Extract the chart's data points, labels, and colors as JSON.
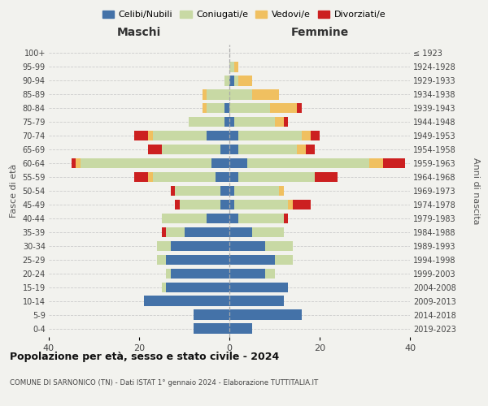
{
  "age_groups": [
    "0-4",
    "5-9",
    "10-14",
    "15-19",
    "20-24",
    "25-29",
    "30-34",
    "35-39",
    "40-44",
    "45-49",
    "50-54",
    "55-59",
    "60-64",
    "65-69",
    "70-74",
    "75-79",
    "80-84",
    "85-89",
    "90-94",
    "95-99",
    "100+"
  ],
  "birth_years": [
    "2019-2023",
    "2014-2018",
    "2009-2013",
    "2004-2008",
    "1999-2003",
    "1994-1998",
    "1989-1993",
    "1984-1988",
    "1979-1983",
    "1974-1978",
    "1969-1973",
    "1964-1968",
    "1959-1963",
    "1954-1958",
    "1949-1953",
    "1944-1948",
    "1939-1943",
    "1934-1938",
    "1929-1933",
    "1924-1928",
    "≤ 1923"
  ],
  "colors": {
    "celibe": "#4472a8",
    "coniugato": "#c8d9a4",
    "vedovo": "#f0c060",
    "divorziato": "#cc2020"
  },
  "maschi": {
    "celibe": [
      8,
      8,
      19,
      14,
      13,
      14,
      13,
      10,
      5,
      2,
      2,
      3,
      4,
      2,
      5,
      1,
      1,
      0,
      0,
      0,
      0
    ],
    "coniugato": [
      0,
      0,
      0,
      1,
      1,
      2,
      3,
      4,
      10,
      9,
      10,
      14,
      29,
      13,
      12,
      8,
      4,
      5,
      1,
      0,
      0
    ],
    "vedovo": [
      0,
      0,
      0,
      0,
      0,
      0,
      0,
      0,
      0,
      0,
      0,
      1,
      1,
      0,
      1,
      0,
      1,
      1,
      0,
      0,
      0
    ],
    "divorziato": [
      0,
      0,
      0,
      0,
      0,
      0,
      0,
      1,
      0,
      1,
      1,
      3,
      1,
      3,
      3,
      0,
      0,
      0,
      0,
      0,
      0
    ]
  },
  "femmine": {
    "nubile": [
      5,
      16,
      12,
      13,
      8,
      10,
      8,
      5,
      2,
      1,
      1,
      2,
      4,
      2,
      2,
      1,
      0,
      0,
      1,
      0,
      0
    ],
    "coniugata": [
      0,
      0,
      0,
      0,
      2,
      4,
      6,
      7,
      10,
      12,
      10,
      17,
      27,
      13,
      14,
      9,
      9,
      5,
      1,
      1,
      0
    ],
    "vedova": [
      0,
      0,
      0,
      0,
      0,
      0,
      0,
      0,
      0,
      1,
      1,
      0,
      3,
      2,
      2,
      2,
      6,
      6,
      3,
      1,
      0
    ],
    "divorziata": [
      0,
      0,
      0,
      0,
      0,
      0,
      0,
      0,
      1,
      4,
      0,
      5,
      5,
      2,
      2,
      1,
      1,
      0,
      0,
      0,
      0
    ]
  },
  "xlim": 40,
  "title": "Popolazione per età, sesso e stato civile - 2024",
  "subtitle": "COMUNE DI SARNONICO (TN) - Dati ISTAT 1° gennaio 2024 - Elaborazione TUTTITALIA.IT",
  "legend_labels": [
    "Celibi/Nubili",
    "Coniugati/e",
    "Vedovi/e",
    "Divorziati/e"
  ],
  "xlabel_left": "Maschi",
  "xlabel_right": "Femmine",
  "ylabel_left": "Fasce di età",
  "ylabel_right": "Anni di nascita",
  "bg_color": "#f2f2ee",
  "bar_height": 0.75
}
